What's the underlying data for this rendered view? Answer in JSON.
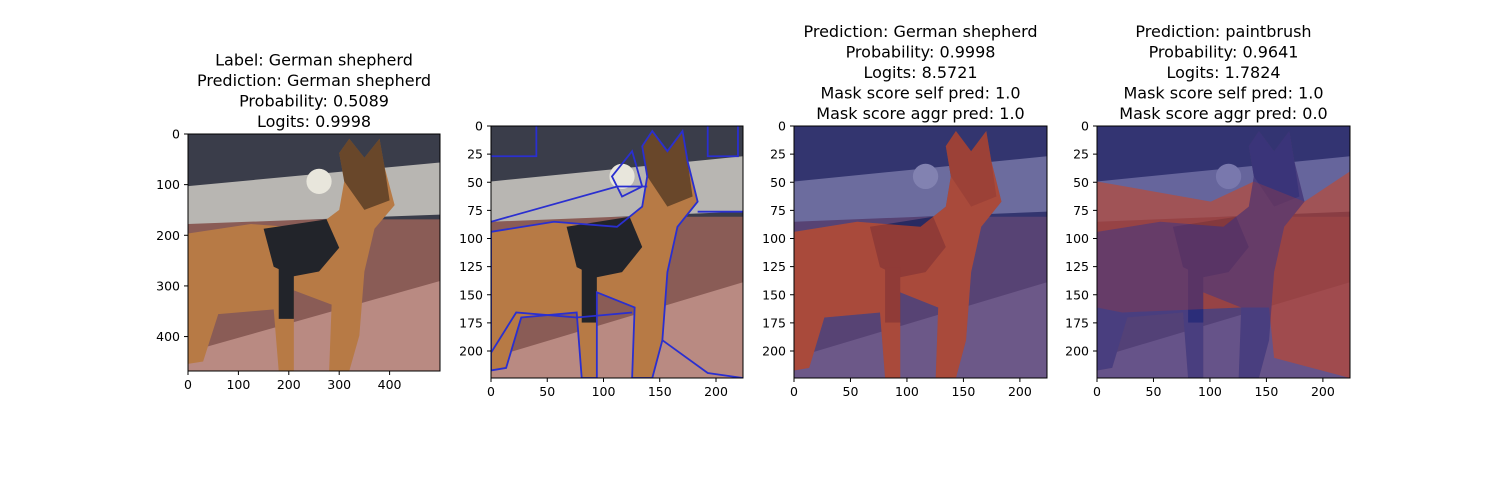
{
  "colors": {
    "background": "#ffffff",
    "axis": "#000000",
    "contour": "#2a2fd0",
    "mask_high": "#d0461d",
    "mask_low": "#2e2f8e",
    "sky": "#3a3d4a",
    "wall_top": "#b8b6b2",
    "wall_side": "#8a5c56",
    "pavement": "#b98a82",
    "dog_fur": "#b77a45",
    "dog_dark": "#2a1d14",
    "vest": "#22242a"
  },
  "chart_data": [
    {
      "type": "image",
      "panel": "original",
      "title": [
        "Label: German shepherd",
        "Prediction: German shepherd",
        "Probability: 0.5089",
        "Logits: 0.9998"
      ],
      "xlim": [
        0,
        500
      ],
      "ylim": [
        468,
        0
      ],
      "xticks": [
        0,
        100,
        200,
        300,
        400
      ],
      "yticks": [
        0,
        100,
        200,
        300,
        400
      ],
      "overlay": "none"
    },
    {
      "type": "image",
      "panel": "segmentation-contours",
      "title": [],
      "xlim": [
        0,
        224
      ],
      "ylim": [
        224,
        0
      ],
      "xticks": [
        0,
        50,
        100,
        150,
        200
      ],
      "yticks": [
        0,
        25,
        50,
        75,
        100,
        125,
        150,
        175,
        200
      ],
      "overlay": "contours"
    },
    {
      "type": "image",
      "panel": "mask-german-shepherd",
      "title": [
        "Prediction: German shepherd",
        "Probability: 0.9998",
        "Logits: 8.5721",
        "Mask score self pred: 1.0",
        "Mask score aggr pred: 1.0"
      ],
      "xlim": [
        0,
        224
      ],
      "ylim": [
        224,
        0
      ],
      "xticks": [
        0,
        50,
        100,
        150,
        200
      ],
      "yticks": [
        0,
        25,
        50,
        75,
        100,
        125,
        150,
        175,
        200
      ],
      "overlay": "mask-dog"
    },
    {
      "type": "image",
      "panel": "mask-paintbrush",
      "title": [
        "Prediction: paintbrush",
        "Probability: 0.9641",
        "Logits: 1.7824",
        "Mask score self pred: 1.0",
        "Mask score aggr pred: 0.0"
      ],
      "xlim": [
        0,
        224
      ],
      "ylim": [
        224,
        0
      ],
      "xticks": [
        0,
        50,
        100,
        150,
        200
      ],
      "yticks": [
        0,
        25,
        50,
        75,
        100,
        125,
        150,
        175,
        200
      ],
      "overlay": "mask-wall"
    }
  ]
}
